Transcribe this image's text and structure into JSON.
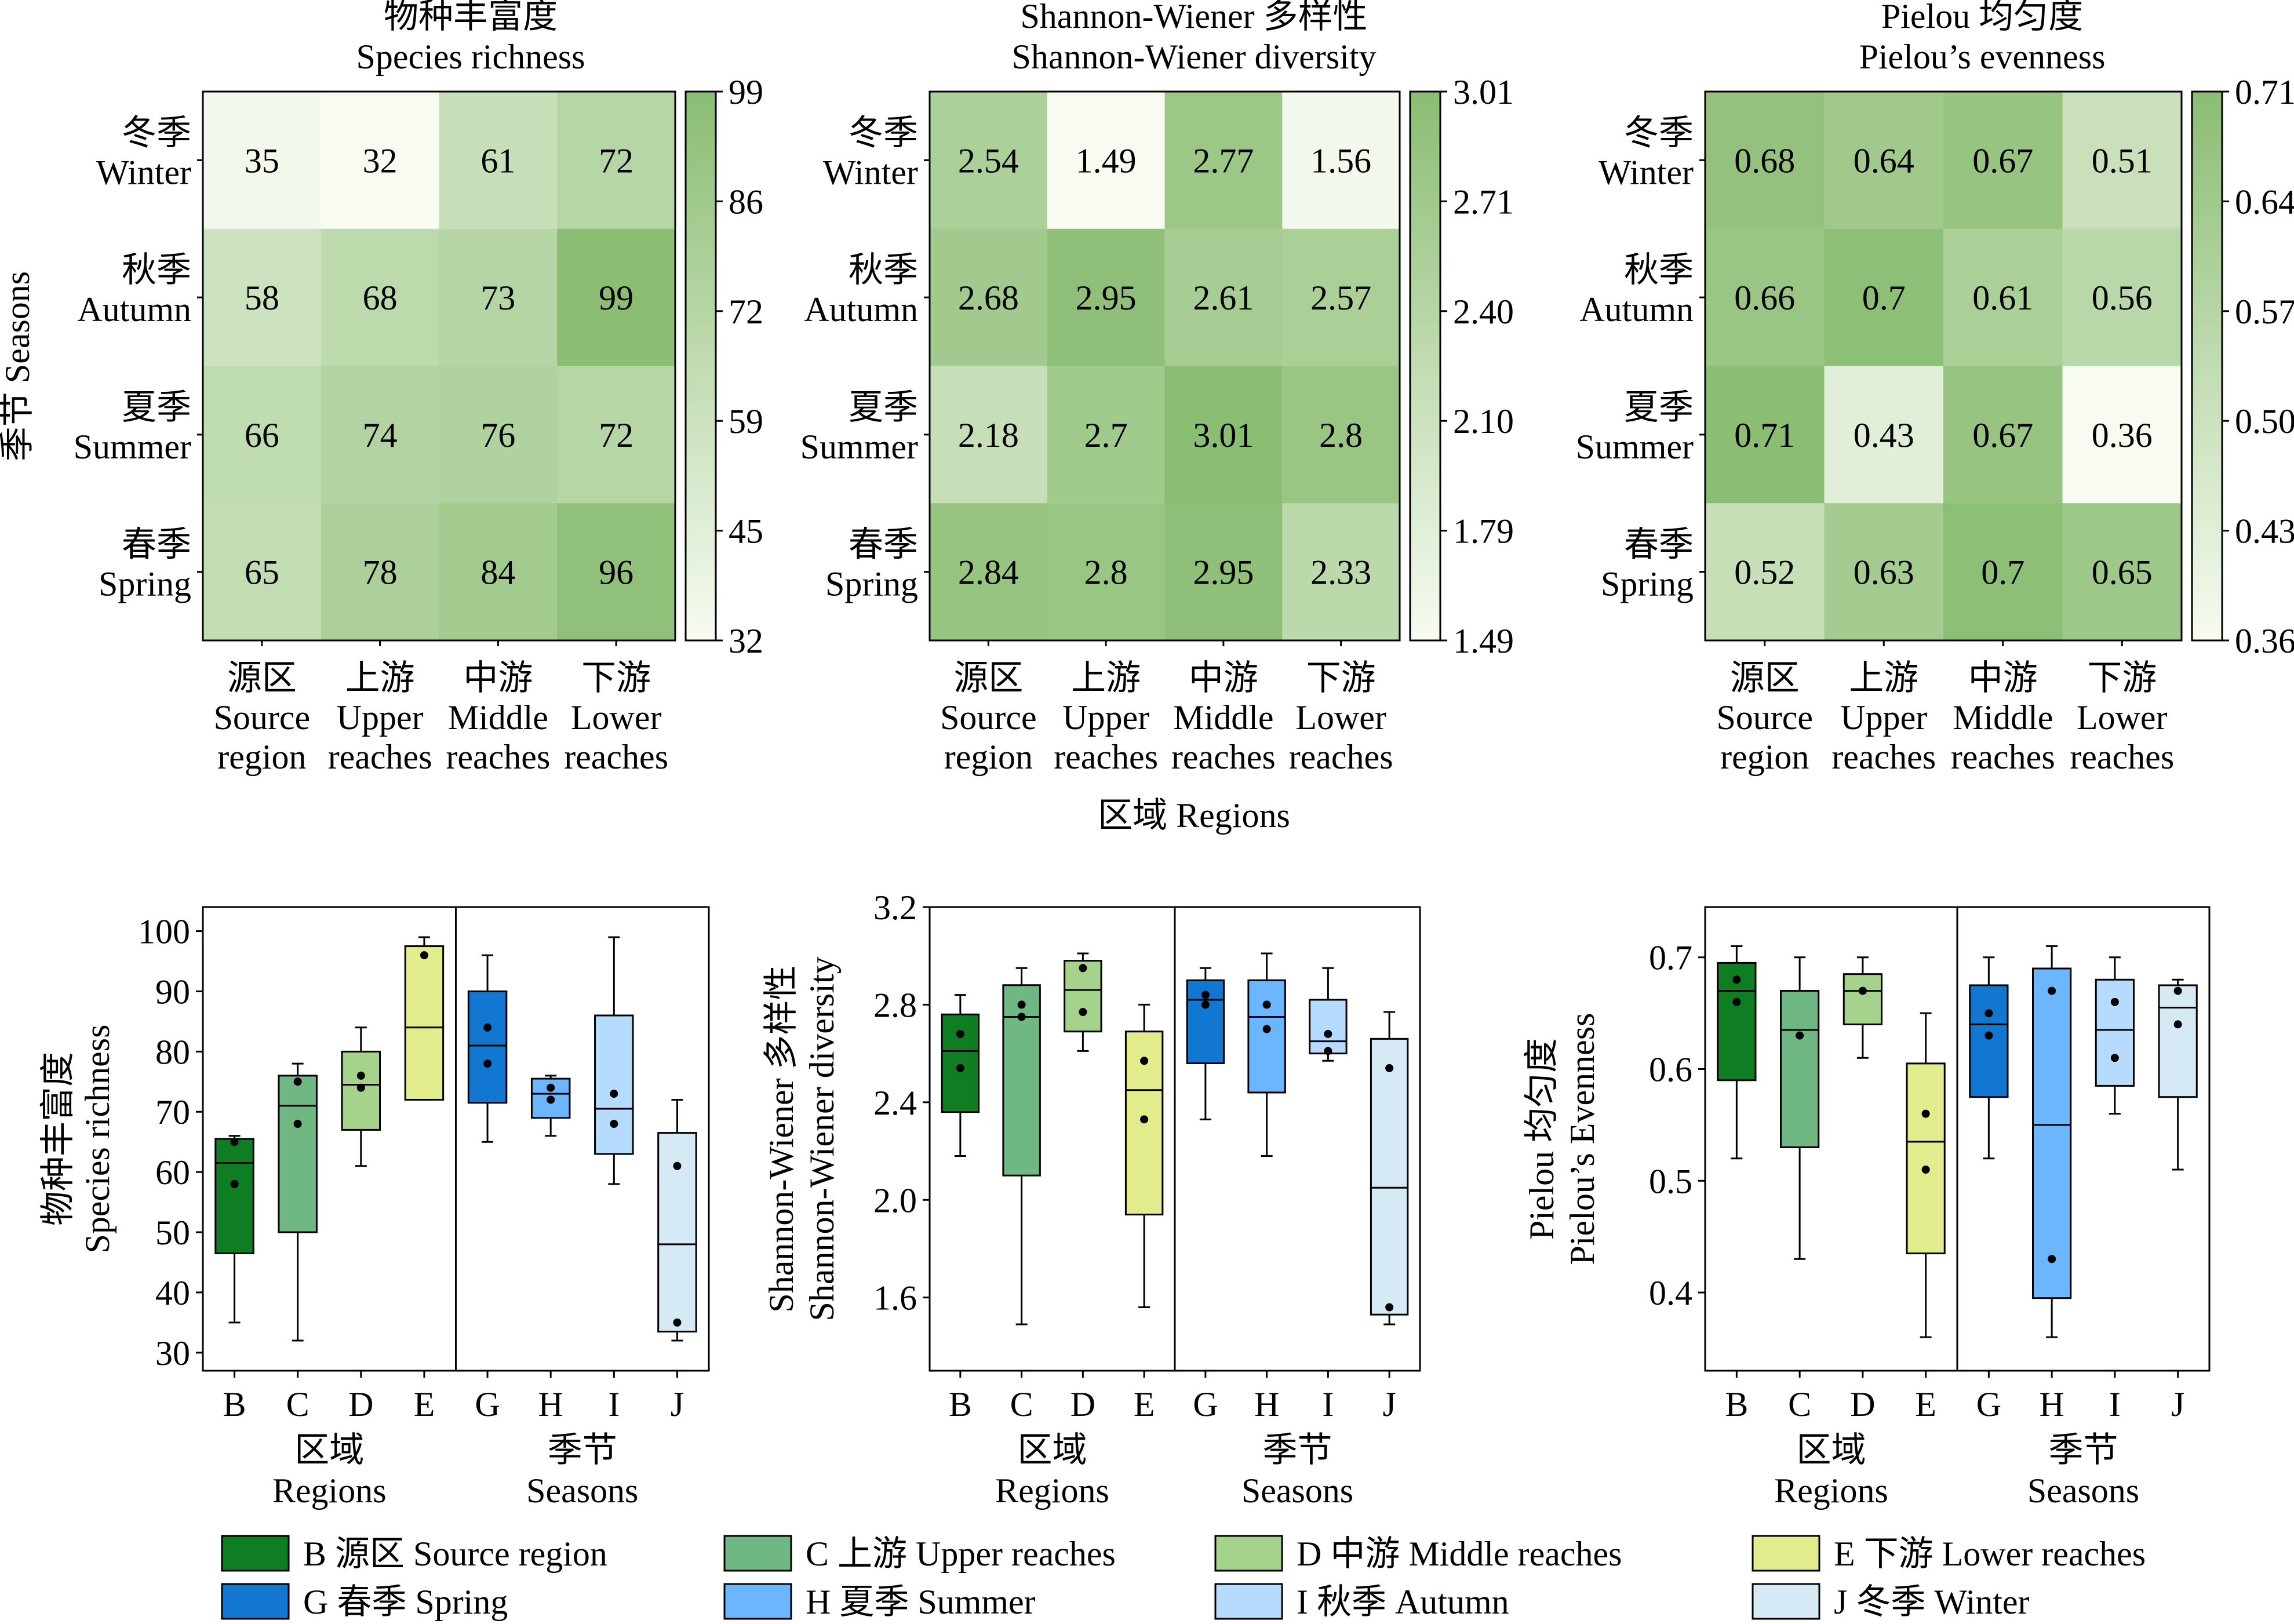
{
  "colors": {
    "heat_low": "#f7fbf1",
    "heat_high": "#8bbd73",
    "frame": "#000000",
    "groups": {
      "B": "#0f7d22",
      "C": "#6fb883",
      "D": "#a6d38c",
      "E": "#e3ec8c",
      "G": "#1277d0",
      "H": "#6cb5ff",
      "I": "#b7dbff",
      "J": "#d6eaf5"
    }
  },
  "heatmap_common": {
    "rows": [
      {
        "cn": "冬季",
        "en": "Winter"
      },
      {
        "cn": "秋季",
        "en": "Autumn"
      },
      {
        "cn": "夏季",
        "en": "Summer"
      },
      {
        "cn": "春季",
        "en": "Spring"
      }
    ],
    "cols": [
      {
        "cn": "源区",
        "en1": "Source",
        "en2": "region"
      },
      {
        "cn": "上游",
        "en1": "Upper",
        "en2": "reaches"
      },
      {
        "cn": "中游",
        "en1": "Middle",
        "en2": "reaches"
      },
      {
        "cn": "下游",
        "en1": "Lower",
        "en2": "reaches"
      }
    ],
    "ylabel": "季节 Seasons",
    "xlabel": "区域 Regions"
  },
  "boxplot_common": {
    "categories": [
      "B",
      "C",
      "D",
      "E",
      "G",
      "H",
      "I",
      "J"
    ],
    "group1_cn": "区域",
    "group1_en": "Regions",
    "group2_cn": "季节",
    "group2_en": "Seasons"
  },
  "legend": [
    {
      "key": "B",
      "label": "B 源区 Source region"
    },
    {
      "key": "C",
      "label": "C 上游 Upper reaches"
    },
    {
      "key": "D",
      "label": "D 中游 Middle reaches"
    },
    {
      "key": "E",
      "label": "E 下游 Lower reaches"
    },
    {
      "key": "G",
      "label": "G 春季 Spring"
    },
    {
      "key": "H",
      "label": "H 夏季 Summer"
    },
    {
      "key": "I",
      "label": "I 秋季 Autumn"
    },
    {
      "key": "J",
      "label": "J 冬季 Winter"
    }
  ],
  "chart_data": [
    {
      "type": "heatmap",
      "title_cn": "物种丰富度",
      "title_en": "Species richness",
      "values": [
        [
          35,
          32,
          61,
          72
        ],
        [
          58,
          68,
          73,
          99
        ],
        [
          66,
          74,
          76,
          72
        ],
        [
          65,
          78,
          84,
          96
        ]
      ],
      "labels": [
        [
          "35",
          "32",
          "61",
          "72"
        ],
        [
          "58",
          "68",
          "73",
          "99"
        ],
        [
          "66",
          "74",
          "76",
          "72"
        ],
        [
          "65",
          "78",
          "84",
          "96"
        ]
      ],
      "colorbar_range": [
        32,
        99
      ],
      "colorbar_ticks": [
        "99",
        "86",
        "72",
        "59",
        "45",
        "32"
      ]
    },
    {
      "type": "heatmap",
      "title_cn": "Shannon-Wiener 多样性",
      "title_en": "Shannon-Wiener diversity",
      "values": [
        [
          2.54,
          1.49,
          2.77,
          1.56
        ],
        [
          2.68,
          2.95,
          2.61,
          2.57
        ],
        [
          2.18,
          2.7,
          3.01,
          2.8
        ],
        [
          2.84,
          2.8,
          2.95,
          2.33
        ]
      ],
      "labels": [
        [
          "2.54",
          "1.49",
          "2.77",
          "1.56"
        ],
        [
          "2.68",
          "2.95",
          "2.61",
          "2.57"
        ],
        [
          "2.18",
          "2.7",
          "3.01",
          "2.8"
        ],
        [
          "2.84",
          "2.8",
          "2.95",
          "2.33"
        ]
      ],
      "colorbar_range": [
        1.49,
        3.01
      ],
      "colorbar_ticks": [
        "3.01",
        "2.71",
        "2.40",
        "2.10",
        "1.79",
        "1.49"
      ]
    },
    {
      "type": "heatmap",
      "title_cn": "Pielou 均匀度",
      "title_en": "Pielou’s evenness",
      "values": [
        [
          0.68,
          0.64,
          0.67,
          0.51
        ],
        [
          0.66,
          0.7,
          0.61,
          0.56
        ],
        [
          0.71,
          0.43,
          0.67,
          0.36
        ],
        [
          0.52,
          0.63,
          0.7,
          0.65
        ]
      ],
      "labels": [
        [
          "0.68",
          "0.64",
          "0.67",
          "0.51"
        ],
        [
          "0.66",
          "0.7",
          "0.61",
          "0.56"
        ],
        [
          "0.71",
          "0.43",
          "0.67",
          "0.36"
        ],
        [
          "0.52",
          "0.63",
          "0.7",
          "0.65"
        ]
      ],
      "colorbar_range": [
        0.36,
        0.71
      ],
      "colorbar_ticks": [
        "0.71",
        "0.64",
        "0.57",
        "0.50",
        "0.43",
        "0.36"
      ]
    },
    {
      "type": "box",
      "ylabel_cn": "物种丰富度",
      "ylabel_en": "Species richness",
      "ylim": [
        27,
        104
      ],
      "yticks": [
        30,
        40,
        50,
        60,
        70,
        80,
        90,
        100
      ],
      "boxes": [
        {
          "cat": "B",
          "min": 35,
          "q1": 46.5,
          "median": 61.5,
          "q3": 65.5,
          "max": 66,
          "means": [
            65,
            58
          ]
        },
        {
          "cat": "C",
          "min": 32,
          "q1": 50,
          "median": 71,
          "q3": 76,
          "max": 78,
          "means": [
            75,
            68
          ]
        },
        {
          "cat": "D",
          "min": 61,
          "q1": 67,
          "median": 74.5,
          "q3": 80,
          "max": 84,
          "means": [
            76,
            74
          ]
        },
        {
          "cat": "E",
          "min": 72,
          "q1": 72,
          "median": 84,
          "q3": 97.5,
          "max": 99,
          "means": [
            96
          ]
        },
        {
          "cat": "G",
          "min": 65,
          "q1": 71.5,
          "median": 81,
          "q3": 90,
          "max": 96,
          "means": [
            84,
            78
          ]
        },
        {
          "cat": "H",
          "min": 66,
          "q1": 69,
          "median": 73,
          "q3": 75.5,
          "max": 76,
          "means": [
            74,
            72
          ]
        },
        {
          "cat": "I",
          "min": 58,
          "q1": 63,
          "median": 70.5,
          "q3": 86,
          "max": 99,
          "means": [
            73,
            68
          ]
        },
        {
          "cat": "J",
          "min": 32,
          "q1": 33.5,
          "median": 48,
          "q3": 66.5,
          "max": 72,
          "means": [
            61,
            35
          ]
        }
      ]
    },
    {
      "type": "box",
      "ylabel_cn": "Shannon-Wiener 多样性",
      "ylabel_en": "Shannon-Wiener diversity",
      "ylim": [
        1.3,
        3.2
      ],
      "yticks": [
        1.6,
        2.0,
        2.4,
        2.8,
        3.2
      ],
      "boxes": [
        {
          "cat": "B",
          "min": 2.18,
          "q1": 2.36,
          "median": 2.61,
          "q3": 2.76,
          "max": 2.84,
          "means": [
            2.68,
            2.54
          ]
        },
        {
          "cat": "C",
          "min": 1.49,
          "q1": 2.1,
          "median": 2.75,
          "q3": 2.88,
          "max": 2.95,
          "means": [
            2.8,
            2.75
          ]
        },
        {
          "cat": "D",
          "min": 2.61,
          "q1": 2.69,
          "median": 2.86,
          "q3": 2.98,
          "max": 3.01,
          "means": [
            2.95,
            2.77
          ]
        },
        {
          "cat": "E",
          "min": 1.56,
          "q1": 1.94,
          "median": 2.45,
          "q3": 2.69,
          "max": 2.8,
          "means": [
            2.57,
            2.33
          ]
        },
        {
          "cat": "G",
          "min": 2.33,
          "q1": 2.56,
          "median": 2.82,
          "q3": 2.9,
          "max": 2.95,
          "means": [
            2.84,
            2.8
          ]
        },
        {
          "cat": "H",
          "min": 2.18,
          "q1": 2.44,
          "median": 2.75,
          "q3": 2.9,
          "max": 3.01,
          "means": [
            2.8,
            2.7
          ]
        },
        {
          "cat": "I",
          "min": 2.57,
          "q1": 2.6,
          "median": 2.65,
          "q3": 2.82,
          "max": 2.95,
          "means": [
            2.68,
            2.61
          ]
        },
        {
          "cat": "J",
          "min": 1.49,
          "q1": 1.53,
          "median": 2.05,
          "q3": 2.66,
          "max": 2.77,
          "means": [
            2.54,
            1.56
          ]
        }
      ]
    },
    {
      "type": "box",
      "ylabel_cn": "Pielou 均匀度",
      "ylabel_en": "Pielou’s Evenness",
      "ylim": [
        0.33,
        0.745
      ],
      "yticks": [
        0.4,
        0.5,
        0.6,
        0.7
      ],
      "boxes": [
        {
          "cat": "B",
          "min": 0.52,
          "q1": 0.59,
          "median": 0.67,
          "q3": 0.695,
          "max": 0.71,
          "means": [
            0.68,
            0.66
          ]
        },
        {
          "cat": "C",
          "min": 0.43,
          "q1": 0.53,
          "median": 0.635,
          "q3": 0.67,
          "max": 0.7,
          "means": [
            0.63
          ]
        },
        {
          "cat": "D",
          "min": 0.61,
          "q1": 0.64,
          "median": 0.67,
          "q3": 0.685,
          "max": 0.7,
          "means": [
            0.67
          ]
        },
        {
          "cat": "E",
          "min": 0.36,
          "q1": 0.435,
          "median": 0.535,
          "q3": 0.605,
          "max": 0.65,
          "means": [
            0.56,
            0.51
          ]
        },
        {
          "cat": "G",
          "min": 0.52,
          "q1": 0.575,
          "median": 0.64,
          "q3": 0.675,
          "max": 0.7,
          "means": [
            0.65,
            0.63
          ]
        },
        {
          "cat": "H",
          "min": 0.36,
          "q1": 0.395,
          "median": 0.55,
          "q3": 0.69,
          "max": 0.71,
          "means": [
            0.67,
            0.43
          ]
        },
        {
          "cat": "I",
          "min": 0.56,
          "q1": 0.585,
          "median": 0.635,
          "q3": 0.68,
          "max": 0.7,
          "means": [
            0.66,
            0.61
          ]
        },
        {
          "cat": "J",
          "min": 0.51,
          "q1": 0.575,
          "median": 0.655,
          "q3": 0.675,
          "max": 0.68,
          "means": [
            0.67,
            0.64
          ]
        }
      ]
    }
  ]
}
